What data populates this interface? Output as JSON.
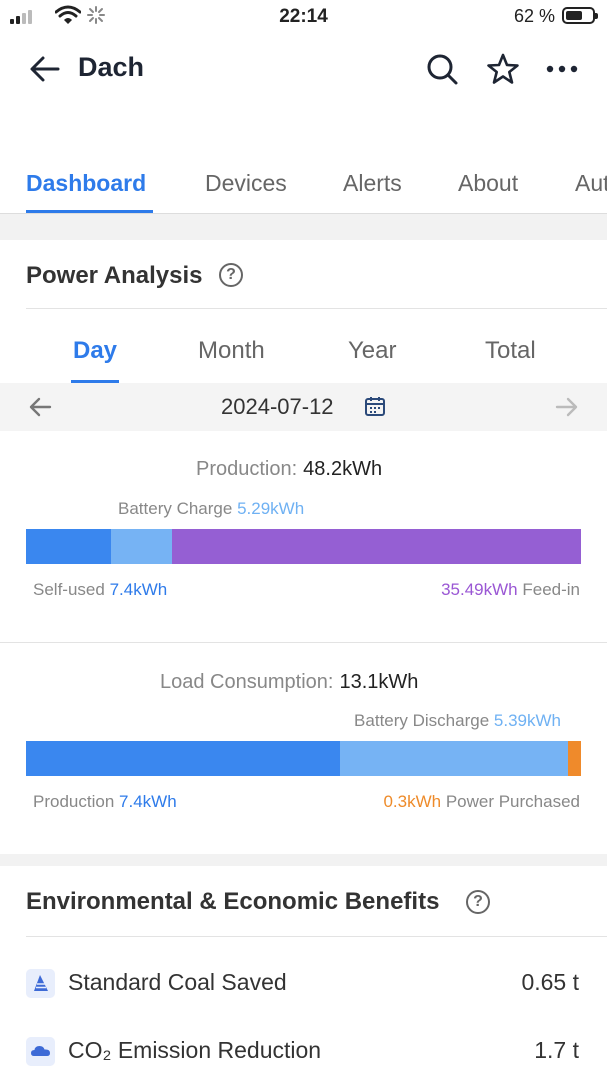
{
  "status_bar": {
    "time": "22:14",
    "battery_percent": "62 %",
    "battery_level": 0.62
  },
  "header": {
    "title": "Dach",
    "icons": [
      "back-arrow-icon",
      "search-icon",
      "star-icon",
      "more-icon"
    ]
  },
  "tabs": [
    {
      "label": "Dashboard",
      "active": true
    },
    {
      "label": "Devices",
      "active": false
    },
    {
      "label": "Alerts",
      "active": false
    },
    {
      "label": "About",
      "active": false
    },
    {
      "label": "Aut",
      "active": false
    }
  ],
  "power_analysis": {
    "title": "Power Analysis",
    "help": "?",
    "periods": [
      {
        "label": "Day",
        "active": true
      },
      {
        "label": "Month",
        "active": false
      },
      {
        "label": "Year",
        "active": false
      },
      {
        "label": "Total",
        "active": false
      }
    ],
    "date": "2024-07-12",
    "production": {
      "label": "Production:",
      "value": "48.2kWh",
      "battery_charge_label": "Battery Charge",
      "battery_charge_value": "5.29kWh",
      "self_used_label": "Self-used",
      "self_used_value": "7.4kWh",
      "feed_in_value": "35.49kWh",
      "feed_in_label": "Feed-in",
      "segments": [
        {
          "name": "self-used",
          "value": 7.4,
          "color": "#3a87ef"
        },
        {
          "name": "battery-charge",
          "value": 5.29,
          "color": "#76b3f4"
        },
        {
          "name": "feed-in",
          "value": 35.49,
          "color": "#955fd3"
        }
      ]
    },
    "load": {
      "label": "Load Consumption:",
      "value": "13.1kWh",
      "battery_discharge_label": "Battery Discharge",
      "battery_discharge_value": "5.39kWh",
      "production_label": "Production",
      "production_value": "7.4kWh",
      "purchased_value": "0.3kWh",
      "purchased_label": "Power Purchased",
      "segments": [
        {
          "name": "production",
          "value": 7.4,
          "color": "#3a87ef"
        },
        {
          "name": "battery-discharge",
          "value": 5.39,
          "color": "#76b3f4"
        },
        {
          "name": "power-purchased",
          "value": 0.3,
          "color": "#ef8a2b"
        }
      ]
    }
  },
  "benefits": {
    "title": "Environmental & Economic Benefits",
    "help": "?",
    "items": [
      {
        "icon": "coal-icon",
        "label": "Standard Coal Saved",
        "value": "0.65 t"
      },
      {
        "icon": "co2-icon",
        "label": "CO₂ Emission Reduction",
        "value": "1.7 t"
      }
    ]
  }
}
